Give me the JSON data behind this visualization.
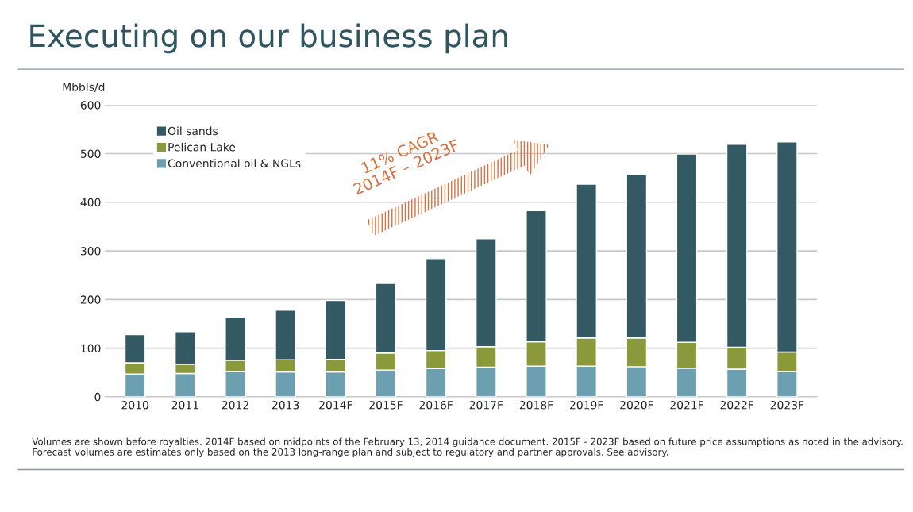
{
  "chart_data": {
    "type": "bar",
    "stacked": true,
    "title": "Executing on our business plan",
    "ylabel": "Mbbls/d",
    "categories": [
      "2010",
      "2011",
      "2012",
      "2013",
      "2014F",
      "2015F",
      "2016F",
      "2017F",
      "2018F",
      "2019F",
      "2020F",
      "2021F",
      "2022F",
      "2023F"
    ],
    "series": [
      {
        "name": "Conventional oil & NGLs",
        "color": "#6c9fb0",
        "values": [
          47,
          48,
          52,
          51,
          51,
          55,
          58,
          61,
          63,
          63,
          62,
          59,
          57,
          52
        ]
      },
      {
        "name": "Pelican Lake",
        "color": "#8a9a3b",
        "values": [
          23,
          19,
          23,
          25,
          26,
          35,
          37,
          42,
          50,
          58,
          59,
          53,
          45,
          40
        ]
      },
      {
        "name": "Oil sands",
        "color": "#335a62",
        "values": [
          58,
          67,
          89,
          102,
          121,
          143,
          189,
          222,
          270,
          316,
          337,
          387,
          417,
          432
        ]
      }
    ],
    "ylim": [
      0,
      600
    ],
    "yticks": [
      0,
      100,
      200,
      300,
      400,
      500,
      600
    ],
    "grid": "y",
    "legend": "top left",
    "annotations": [
      "11% CAGR\n2014F – 2023F",
      "Volumes are shown before royalties. 2014F based on midpoints of the February 13, 2014 guidance document. 2015F - 2023F based on future price assumptions as noted in the advisory. Forecast volumes are estimates only based on the 2013 long-range plan and subject to regulatory and partner approvals. See advisory."
    ]
  }
}
